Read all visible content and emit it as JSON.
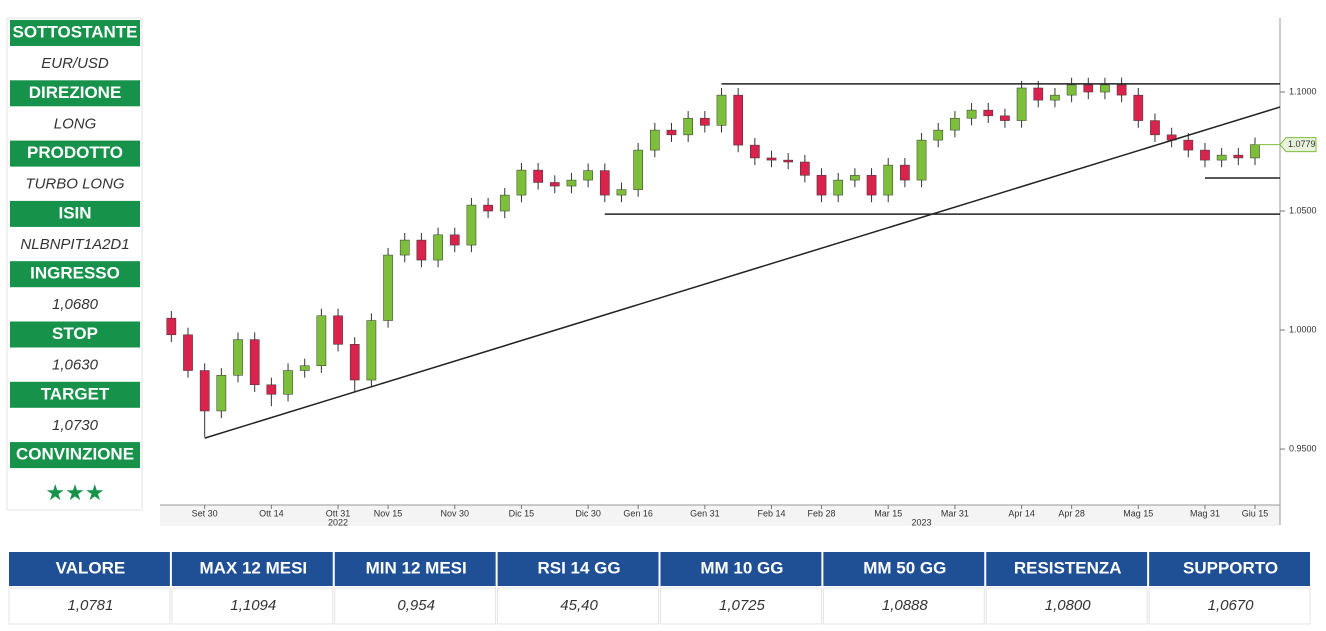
{
  "panel": [
    {
      "label": "SOTTOSTANTE",
      "value": "EUR/USD"
    },
    {
      "label": "DIREZIONE",
      "value": "LONG"
    },
    {
      "label": "PRODOTTO",
      "value": "TURBO LONG"
    },
    {
      "label": "ISIN",
      "value": "NLBNPIT1A2D1"
    },
    {
      "label": "INGRESSO",
      "value": "1,0680"
    },
    {
      "label": "STOP",
      "value": "1,0630"
    },
    {
      "label": "TARGET",
      "value": "1,0730"
    },
    {
      "label": "CONVINZIONE",
      "value": "★★★"
    }
  ],
  "chart_data": {
    "type": "candlestick",
    "up_color": "#7dbf3b",
    "down_color": "#d9234c",
    "categories": [
      null,
      null,
      "Set 30",
      null,
      null,
      null,
      "Ott 14",
      null,
      null,
      null,
      "Ott 31",
      null,
      null,
      "Nov 15",
      null,
      null,
      null,
      "Nov 30",
      null,
      null,
      null,
      "Dic 15",
      null,
      null,
      null,
      "Dic 30",
      null,
      null,
      "Gen 16",
      null,
      null,
      null,
      "Gen 31",
      null,
      null,
      null,
      "Feb 14",
      null,
      null,
      "Feb 28",
      null,
      null,
      null,
      "Mar 15",
      null,
      null,
      null,
      "Mar 31",
      null,
      null,
      null,
      "Apr 14",
      null,
      null,
      "Apr 28",
      null,
      null,
      null,
      "Mag 15",
      null,
      null,
      null,
      "Mag 31",
      null,
      null,
      "Giu 15"
    ],
    "year_labels": [
      {
        "text": "2022",
        "index": 10
      },
      {
        "text": "2023",
        "index": 45
      }
    ],
    "ohlc": [
      [
        1.005,
        1.008,
        0.995,
        0.998
      ],
      [
        0.998,
        1.001,
        0.98,
        0.983
      ],
      [
        0.983,
        0.986,
        0.955,
        0.966
      ],
      [
        0.966,
        0.984,
        0.963,
        0.981
      ],
      [
        0.981,
        0.999,
        0.978,
        0.996
      ],
      [
        0.996,
        0.999,
        0.974,
        0.977
      ],
      [
        0.977,
        0.98,
        0.968,
        0.973
      ],
      [
        0.973,
        0.986,
        0.97,
        0.983
      ],
      [
        0.983,
        0.988,
        0.98,
        0.985
      ],
      [
        0.985,
        1.009,
        0.982,
        1.006
      ],
      [
        1.006,
        1.009,
        0.991,
        0.994
      ],
      [
        0.994,
        0.997,
        0.974,
        0.979
      ],
      [
        0.979,
        1.007,
        0.976,
        1.004
      ],
      [
        1.004,
        1.0345,
        1.001,
        1.0315
      ],
      [
        1.0315,
        1.0408,
        1.0285,
        1.0378
      ],
      [
        1.0378,
        1.0408,
        1.0264,
        1.0294
      ],
      [
        1.0294,
        1.043,
        1.0264,
        1.04
      ],
      [
        1.04,
        1.043,
        1.0327,
        1.0357
      ],
      [
        1.0357,
        1.0555,
        1.0327,
        1.0525
      ],
      [
        1.0525,
        1.0555,
        1.047,
        1.05
      ],
      [
        1.05,
        1.0597,
        1.047,
        1.0567
      ],
      [
        1.0567,
        1.0702,
        1.0537,
        1.0672
      ],
      [
        1.0672,
        1.0702,
        1.059,
        1.062
      ],
      [
        1.062,
        1.065,
        1.0575,
        1.0605
      ],
      [
        1.0605,
        1.066,
        1.0575,
        1.063
      ],
      [
        1.063,
        1.07,
        1.06,
        1.067
      ],
      [
        1.067,
        1.07,
        1.0537,
        1.0567
      ],
      [
        1.0567,
        1.062,
        1.0537,
        1.059
      ],
      [
        1.059,
        1.0786,
        1.056,
        1.0756
      ],
      [
        1.0756,
        1.087,
        1.0726,
        1.084
      ],
      [
        1.084,
        1.087,
        1.079,
        1.082
      ],
      [
        1.082,
        1.092,
        1.079,
        1.089
      ],
      [
        1.089,
        1.092,
        1.083,
        1.086
      ],
      [
        1.086,
        1.1017,
        1.083,
        1.0987
      ],
      [
        1.0987,
        1.1017,
        1.0747,
        1.0777
      ],
      [
        1.0777,
        1.0807,
        1.0693,
        1.0723
      ],
      [
        1.0723,
        1.0753,
        1.0684,
        1.0714
      ],
      [
        1.0714,
        1.0744,
        1.0676,
        1.0706
      ],
      [
        1.0706,
        1.0736,
        1.062,
        1.065
      ],
      [
        1.065,
        1.068,
        1.0537,
        1.0567
      ],
      [
        1.0567,
        1.066,
        1.0537,
        1.063
      ],
      [
        1.063,
        1.068,
        1.06,
        1.065
      ],
      [
        1.065,
        1.068,
        1.0537,
        1.0567
      ],
      [
        1.0567,
        1.0723,
        1.0537,
        1.0693
      ],
      [
        1.0693,
        1.0723,
        1.06,
        1.063
      ],
      [
        1.063,
        1.0828,
        1.06,
        1.0798
      ],
      [
        1.0798,
        1.087,
        1.0768,
        1.084
      ],
      [
        1.084,
        1.092,
        1.081,
        1.089
      ],
      [
        1.089,
        1.0954,
        1.086,
        1.0924
      ],
      [
        1.0924,
        1.0954,
        1.087,
        1.09
      ],
      [
        1.09,
        1.093,
        1.085,
        1.088
      ],
      [
        1.088,
        1.1047,
        1.085,
        1.1017
      ],
      [
        1.1017,
        1.1047,
        1.0936,
        1.0966
      ],
      [
        1.0966,
        1.1017,
        1.0936,
        1.0987
      ],
      [
        1.0987,
        1.106,
        1.0957,
        1.103
      ],
      [
        1.103,
        1.106,
        1.097,
        1.1
      ],
      [
        1.1,
        1.106,
        1.097,
        1.103
      ],
      [
        1.103,
        1.106,
        1.0957,
        1.0987
      ],
      [
        1.0987,
        1.1017,
        1.085,
        1.088
      ],
      [
        1.088,
        1.091,
        1.079,
        1.082
      ],
      [
        1.082,
        1.085,
        1.0768,
        1.0798
      ],
      [
        1.0798,
        1.0828,
        1.0726,
        1.0756
      ],
      [
        1.0756,
        1.0786,
        1.0684,
        1.0714
      ],
      [
        1.0714,
        1.0765,
        1.0684,
        1.0735
      ],
      [
        1.0735,
        1.0765,
        1.0693,
        1.0723
      ],
      [
        1.0723,
        1.0809,
        1.0693,
        1.0779
      ]
    ],
    "xlim": [
      -0.5,
      66.5
    ],
    "ylim": [
      0.9265,
      1.1311
    ],
    "yticks": [
      {
        "value": 0.95,
        "label": "0.9500"
      },
      {
        "value": 1.0,
        "label": "1.0000"
      },
      {
        "value": 1.05,
        "label": "1.0500"
      },
      {
        "value": 1.1,
        "label": "1.1000"
      }
    ],
    "last_price": 1.0779,
    "hlines": [
      {
        "value": 1.1034,
        "from": 33
      },
      {
        "value": 1.0487,
        "from": 26
      },
      {
        "value": 1.0639,
        "from": 62
      }
    ],
    "trendline": {
      "from": [
        2,
        0.9546
      ],
      "to": [
        66.5,
        1.0937
      ]
    }
  },
  "table": {
    "headers": [
      "VALORE",
      "MAX 12 MESI",
      "MIN 12 MESI",
      "RSI 14 GG",
      "MM 10 GG",
      "MM 50 GG",
      "RESISTENZA",
      "SUPPORTO"
    ],
    "values": [
      "1,0781",
      "1,1094",
      "0,954",
      "45,40",
      "1,0725",
      "1,0888",
      "1,0800",
      "1,0670"
    ]
  }
}
